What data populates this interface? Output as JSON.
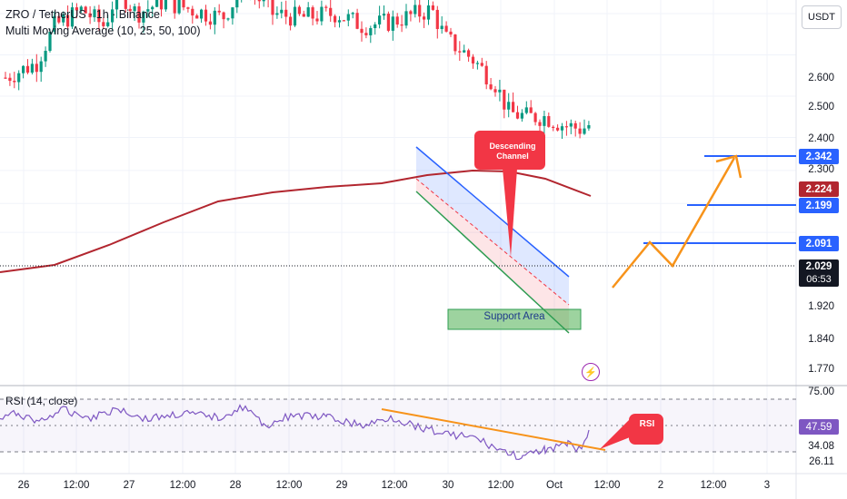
{
  "header": {
    "title": "ZRO / TetherUS · 1h · Binance",
    "indicator": "Multi Moving Average (10, 25, 50, 100)"
  },
  "quote_currency": "USDT",
  "price_axis": [
    "2.600",
    "2.500",
    "2.400",
    "2.300",
    "1.920",
    "1.840",
    "1.770"
  ],
  "price_badges": {
    "level_2342": "2.342",
    "level_2224": "2.224",
    "level_2199": "2.199",
    "level_2091": "2.091",
    "last_price": "2.029",
    "countdown": "06:53"
  },
  "annotations": {
    "descending_channel": "Descending Channel",
    "support_area": "Support Area",
    "rsi_callout": "RSI"
  },
  "rsi": {
    "header": "RSI (14, close)",
    "axis": [
      "75.00",
      "34.08",
      "26.11"
    ],
    "value": "47.59"
  },
  "time_axis": [
    "26",
    "12:00",
    "27",
    "12:00",
    "28",
    "12:00",
    "29",
    "12:00",
    "30",
    "12:00",
    "Oct",
    "12:00",
    "2",
    "12:00",
    "3"
  ],
  "colors": {
    "bull": "#089981",
    "bear": "#f23645",
    "ma": "#b2262f",
    "channel_upper": "#2962ff",
    "channel_lower": "#2e9c52",
    "projection": "#f7931a",
    "rsi_line": "#7e57c2",
    "level_line": "#2962ff"
  }
}
